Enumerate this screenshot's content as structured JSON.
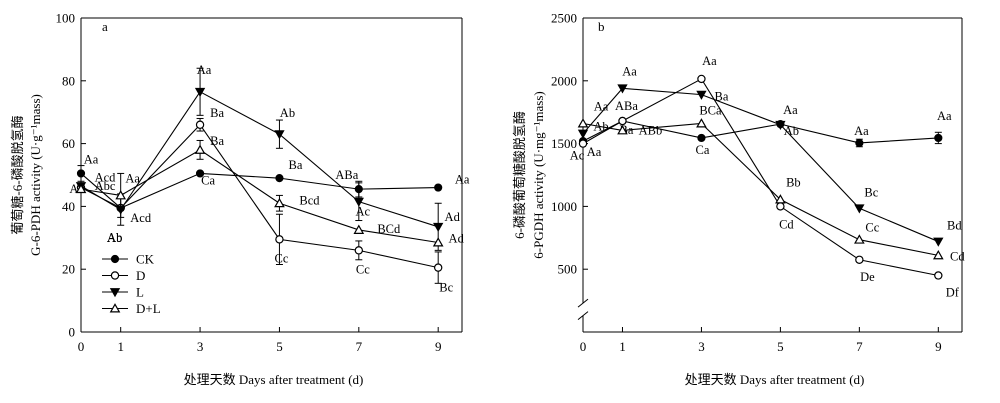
{
  "chart_data": [
    {
      "type": "line",
      "panel_label": "a",
      "x": [
        0,
        1,
        3,
        5,
        7,
        9
      ],
      "xlabel": "处理天数 Days after treatment (d)",
      "ylabel_cn": "葡萄糖-6-磷酸脱氢酶",
      "ylabel_en": "G-6-PDH activity (U·g⁻¹mass)",
      "ylim": [
        0,
        100
      ],
      "yticks": [
        0,
        20,
        40,
        60,
        80,
        100
      ],
      "series": [
        {
          "name": "CK",
          "marker": "filled-circle",
          "values": [
            50.5,
            39.5,
            50.5,
            49.0,
            45.5,
            46.0
          ],
          "errors": [
            2.5,
            0,
            0,
            0,
            2.5,
            0
          ],
          "labels": [
            "Aa",
            "Ab",
            "Ca",
            "Ba",
            "ABa",
            "Aa"
          ]
        },
        {
          "name": "D",
          "marker": "open-circle",
          "values": [
            46.0,
            39.5,
            66.0,
            29.5,
            26.0,
            20.5
          ],
          "errors": [
            0,
            0,
            2.0,
            8.0,
            3.0,
            5.0
          ],
          "labels": [
            "Acd",
            "Acd",
            "Ba",
            "Cc",
            "Cc",
            "Bc"
          ]
        },
        {
          "name": "L",
          "marker": "filled-triangle-down",
          "values": [
            46.5,
            39.0,
            76.5,
            63.0,
            41.5,
            33.5
          ],
          "errors": [
            0,
            5.0,
            7.5,
            4.5,
            6.0,
            7.5
          ],
          "labels": [
            "Ab",
            "Ab",
            "Aa",
            "Ab",
            "Ac",
            "Ad"
          ]
        },
        {
          "name": "D+L",
          "marker": "open-triangle-up",
          "values": [
            45.5,
            43.5,
            58.0,
            41.0,
            32.5,
            28.5
          ],
          "errors": [
            0,
            7.0,
            3.0,
            2.5,
            0,
            0
          ],
          "labels": [
            "Abc",
            "Aa",
            "Ba",
            "Bcd",
            "BCd",
            "Ad"
          ]
        }
      ],
      "legend": "bottom-left"
    },
    {
      "type": "line",
      "panel_label": "b",
      "x": [
        0,
        1,
        3,
        5,
        7,
        9
      ],
      "xlabel": "处理天数 Days after treatment (d)",
      "ylabel_cn": "6-磷酸葡萄糖酸脱氢酶",
      "ylabel_en": "6-PGDH activity (U·mg⁻¹mass)",
      "ylim": [
        0,
        2500
      ],
      "yticks": [
        500,
        1000,
        1500,
        2000,
        2500
      ],
      "axis_break": true,
      "series": [
        {
          "name": "CK",
          "marker": "filled-circle",
          "values": [
            1520,
            1680,
            1545,
            1655,
            1505,
            1545
          ],
          "errors": [
            0,
            0,
            0,
            0,
            30,
            45
          ],
          "labels": [
            "Aa",
            "Ba",
            "Ca",
            "Ab",
            "Aa",
            "Aa"
          ]
        },
        {
          "name": "D",
          "marker": "open-circle",
          "values": [
            1500,
            1680,
            2015,
            1000,
            575,
            450
          ],
          "errors": [
            0,
            0,
            0,
            0,
            0,
            0
          ],
          "labels": [
            "Ac",
            "ABa",
            "Aa",
            "Cd",
            "De",
            "Df"
          ]
        },
        {
          "name": "L",
          "marker": "filled-triangle-down",
          "values": [
            1580,
            1940,
            1890,
            1650,
            985,
            720
          ],
          "errors": [
            0,
            0,
            0,
            0,
            0,
            0
          ],
          "labels": [
            "Ab",
            "Aa",
            "Ba",
            "Aa",
            "Bc",
            "Bd"
          ]
        },
        {
          "name": "D+L",
          "marker": "open-triangle-up",
          "values": [
            1660,
            1605,
            1660,
            1055,
            735,
            610
          ],
          "errors": [
            0,
            0,
            0,
            0,
            0,
            0
          ],
          "labels": [
            "Aa",
            "ABb",
            "BCa",
            "Bb",
            "Cc",
            "Cd"
          ]
        }
      ],
      "legend": "none"
    }
  ]
}
